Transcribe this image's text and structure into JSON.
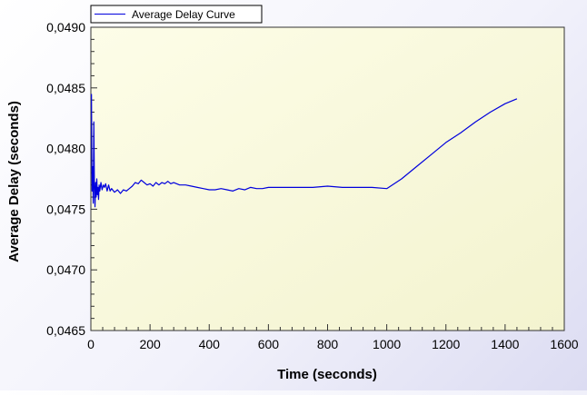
{
  "chart_data": {
    "type": "line",
    "title": "",
    "xlabel": "Time (seconds)",
    "ylabel": "Average Delay (seconds)",
    "xlim": [
      0,
      1600
    ],
    "ylim": [
      0.0465,
      0.049
    ],
    "x_ticks": [
      0,
      200,
      400,
      600,
      800,
      1000,
      1200,
      1400,
      1600
    ],
    "x_tick_labels": [
      "0",
      "200",
      "400",
      "600",
      "800",
      "1000",
      "1200",
      "1400",
      "1600"
    ],
    "y_ticks": [
      0.0465,
      0.047,
      0.0475,
      0.048,
      0.0485,
      0.049
    ],
    "y_tick_labels": [
      "0,0465",
      "0,0470",
      "0,0475",
      "0,0480",
      "0,0485",
      "0,0490"
    ],
    "grid": false,
    "legend_position": "top-left",
    "series": [
      {
        "name": "Average Delay Curve",
        "color": "#0000dd",
        "x": [
          2,
          4,
          6,
          8,
          10,
          12,
          14,
          16,
          18,
          20,
          22,
          24,
          26,
          28,
          30,
          34,
          38,
          42,
          46,
          50,
          55,
          60,
          65,
          70,
          80,
          90,
          100,
          110,
          120,
          130,
          140,
          150,
          160,
          170,
          180,
          190,
          200,
          210,
          220,
          230,
          240,
          250,
          260,
          270,
          280,
          300,
          320,
          340,
          360,
          380,
          400,
          420,
          440,
          460,
          480,
          500,
          520,
          540,
          560,
          580,
          600,
          650,
          700,
          750,
          800,
          850,
          900,
          950,
          1000,
          1050,
          1100,
          1150,
          1200,
          1250,
          1300,
          1350,
          1400,
          1440
        ],
        "y": [
          0.04845,
          0.04765,
          0.04785,
          0.04755,
          0.04822,
          0.04768,
          0.04752,
          0.04772,
          0.0476,
          0.04775,
          0.04762,
          0.04768,
          0.04758,
          0.0477,
          0.04765,
          0.04772,
          0.04766,
          0.0477,
          0.04768,
          0.04771,
          0.04765,
          0.0477,
          0.04765,
          0.04767,
          0.04764,
          0.04766,
          0.04763,
          0.04766,
          0.04765,
          0.04767,
          0.04769,
          0.04772,
          0.04771,
          0.04774,
          0.04772,
          0.0477,
          0.04771,
          0.04769,
          0.04772,
          0.0477,
          0.04772,
          0.04771,
          0.04773,
          0.04771,
          0.04772,
          0.0477,
          0.0477,
          0.04769,
          0.04768,
          0.04767,
          0.04766,
          0.04766,
          0.04767,
          0.04766,
          0.04765,
          0.04767,
          0.04766,
          0.04768,
          0.04767,
          0.04767,
          0.04768,
          0.04768,
          0.04768,
          0.04768,
          0.04769,
          0.04768,
          0.04768,
          0.04768,
          0.04767,
          0.04775,
          0.04785,
          0.04795,
          0.04805,
          0.04813,
          0.04822,
          0.0483,
          0.04837,
          0.04841
        ]
      }
    ]
  }
}
